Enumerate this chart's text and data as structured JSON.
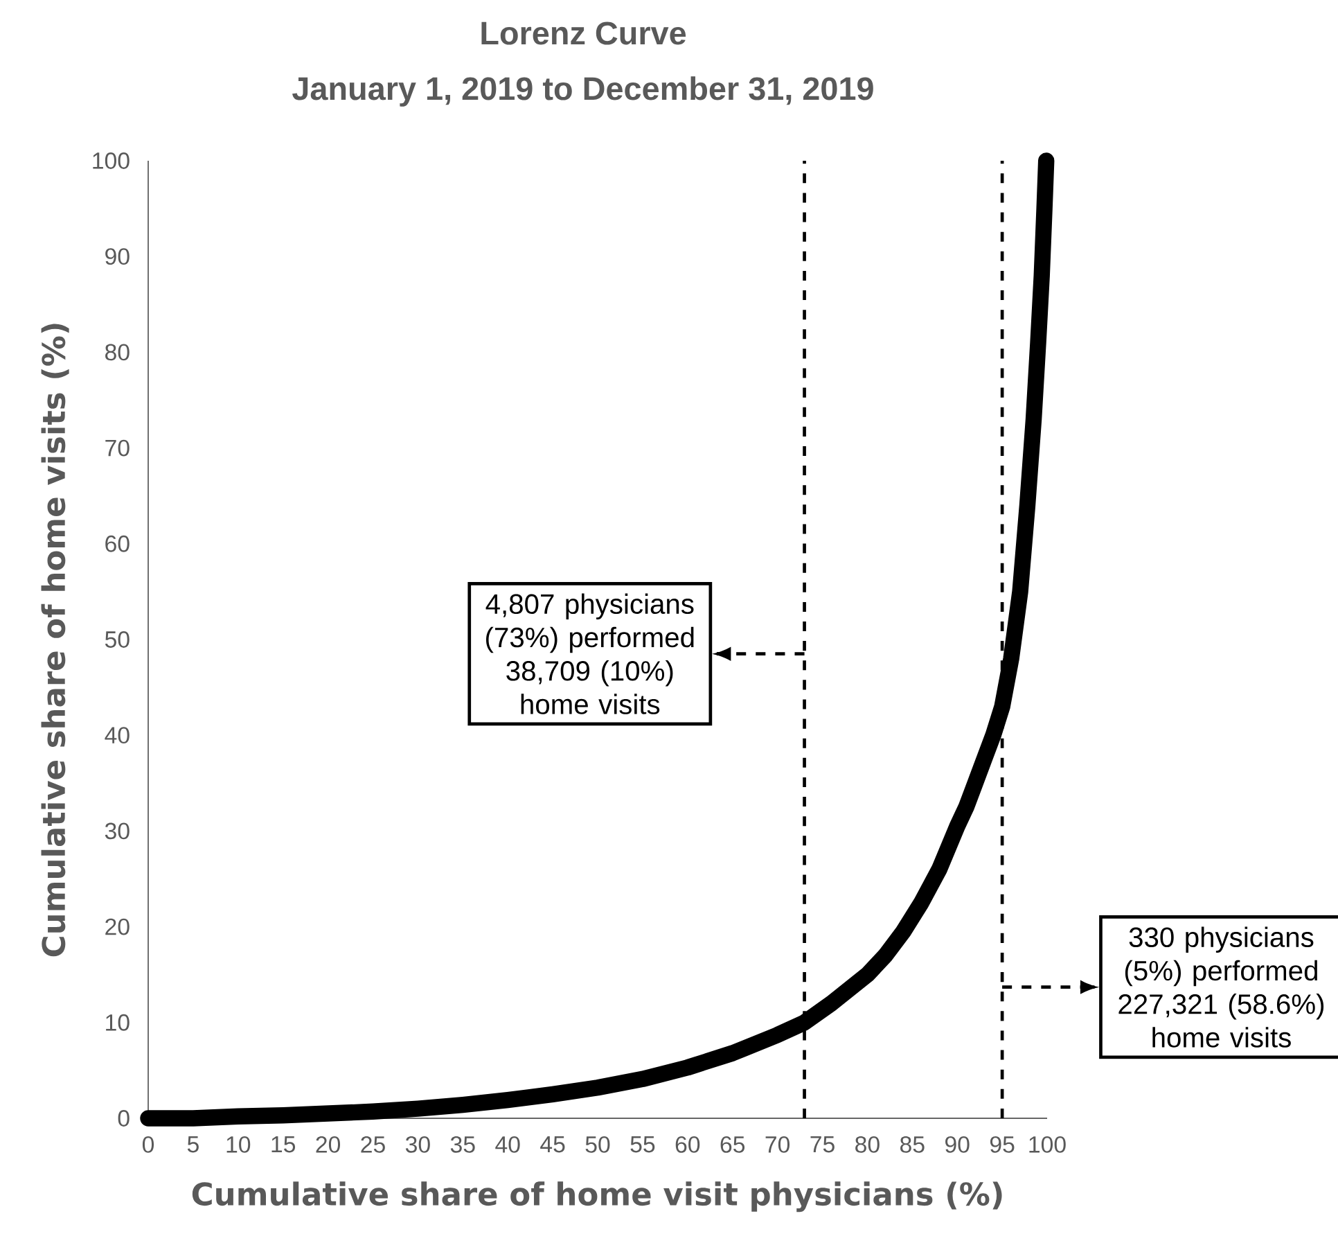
{
  "chart_data": {
    "type": "line",
    "title": "Lorenz Curve",
    "subtitle": "January 1, 2019 to December 31, 2019",
    "xlabel": "Cumulative share of home visit physicians (%)",
    "ylabel": "Cumulative share of home visits (%)",
    "series": [
      {
        "color": "#000000",
        "x": [
          0,
          5,
          10,
          15,
          20,
          25,
          30,
          35,
          40,
          45,
          50,
          55,
          60,
          65,
          70,
          73,
          76,
          78,
          80,
          82,
          84,
          86,
          88,
          90,
          91,
          92,
          93,
          94,
          95,
          96,
          97,
          97.8,
          98.5,
          99,
          99.4,
          99.7,
          99.9
        ],
        "values": [
          0,
          0,
          0.2,
          0.3,
          0.5,
          0.7,
          1.0,
          1.4,
          1.9,
          2.5,
          3.2,
          4.1,
          5.3,
          6.8,
          8.7,
          10,
          12,
          13.5,
          15,
          17,
          19.5,
          22.5,
          26,
          30.5,
          32.5,
          35,
          37.5,
          40,
          43,
          48,
          55,
          64,
          73,
          81,
          88,
          95,
          100
        ]
      }
    ],
    "xlim": [
      0,
      100
    ],
    "ylim": [
      0,
      100
    ],
    "xticks": [
      0,
      5,
      10,
      15,
      20,
      25,
      30,
      35,
      40,
      45,
      50,
      55,
      60,
      65,
      70,
      75,
      80,
      85,
      90,
      95,
      100
    ],
    "yticks": [
      0,
      10,
      20,
      30,
      40,
      50,
      60,
      70,
      80,
      90,
      100
    ],
    "grid": false,
    "marker": "none",
    "line_style": "solid",
    "ref_lines": [
      {
        "axis": "x",
        "value": 73,
        "line_style": "dashed",
        "color": "#000000"
      },
      {
        "axis": "x",
        "value": 95,
        "line_style": "dashed",
        "color": "#000000"
      }
    ],
    "annotations": [
      "4,807 physicians (73%) performed 38,709 (10%) home visits",
      "330 physicians (5%) performed 227,321 (58.6%) home visits"
    ]
  }
}
